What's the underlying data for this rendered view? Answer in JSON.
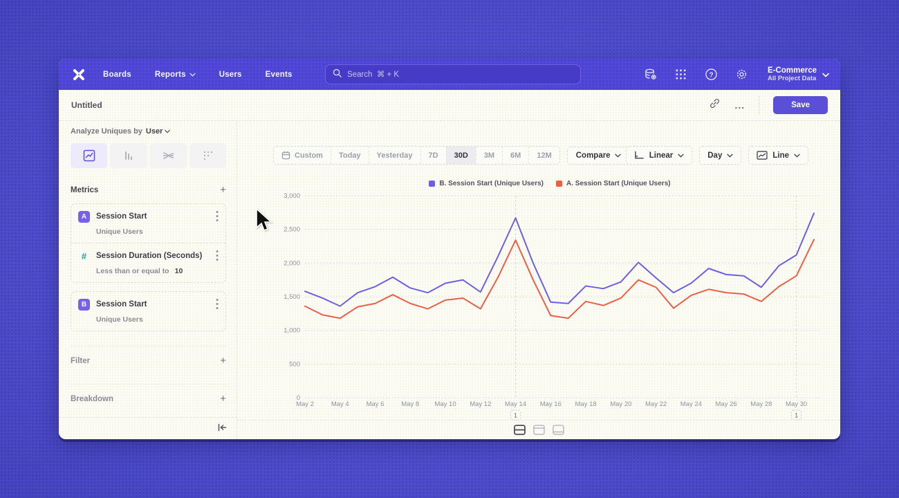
{
  "nav": {
    "items": [
      {
        "label": "Boards",
        "chevron": false
      },
      {
        "label": "Reports",
        "chevron": true
      },
      {
        "label": "Users",
        "chevron": false
      },
      {
        "label": "Events",
        "chevron": false
      }
    ],
    "search": {
      "placeholder": "Search  ⌘ + K"
    },
    "project": {
      "name": "E-Commerce",
      "subtitle": "All Project Data"
    }
  },
  "titlebar": {
    "title": "Untitled",
    "more_label": "...",
    "save_label": "Save"
  },
  "sidebar": {
    "analyze_label": "Analyze Uniques by",
    "analyze_value": "User",
    "metrics_title": "Metrics",
    "add_label": "+",
    "cards": [
      {
        "badge": "A",
        "badge_color": "#7a60e8",
        "title": "Session Start",
        "subtitle": "Unique Users",
        "value": "",
        "group": 0
      },
      {
        "badge": "#",
        "badge_color": "#16a79a",
        "badge_ghost": true,
        "title": "Session Duration (Seconds)",
        "subtitle": "Less than or equal to",
        "value": "10",
        "group": 0
      },
      {
        "badge": "B",
        "badge_color": "#7a60e8",
        "title": "Session Start",
        "subtitle": "Unique Users",
        "value": "",
        "group": 1
      }
    ],
    "sections": [
      {
        "label": "Filter"
      },
      {
        "label": "Breakdown"
      }
    ]
  },
  "toolbar": {
    "ranges": [
      "Custom",
      "Today",
      "Yesterday",
      "7D",
      "30D",
      "3M",
      "6M",
      "12M"
    ],
    "selected_range": "30D",
    "compare_label": "Compare",
    "scale_label": "Linear",
    "interval_label": "Day",
    "chart_type_label": "Line"
  },
  "chart_data": {
    "type": "line",
    "x_labels": [
      "May 2",
      "May 3",
      "May 4",
      "May 5",
      "May 6",
      "May 7",
      "May 8",
      "May 9",
      "May 10",
      "May 11",
      "May 12",
      "May 13",
      "May 14",
      "May 15",
      "May 16",
      "May 17",
      "May 18",
      "May 19",
      "May 20",
      "May 21",
      "May 22",
      "May 23",
      "May 24",
      "May 25",
      "May 26",
      "May 27",
      "May 28",
      "May 29",
      "May 30",
      "May 31"
    ],
    "xtick_every": 2,
    "ylim": [
      0,
      3000
    ],
    "ytick_step": 500,
    "grid": "dotted-horizontal",
    "legend_position": "top-center",
    "series": [
      {
        "name": "B. Session Start (Unique Users)",
        "color": "#6e5fe2",
        "values": [
          1580,
          1480,
          1360,
          1560,
          1650,
          1790,
          1630,
          1560,
          1700,
          1750,
          1570,
          2100,
          2670,
          2000,
          1420,
          1400,
          1660,
          1620,
          1720,
          2010,
          1780,
          1560,
          1700,
          1920,
          1830,
          1810,
          1640,
          1960,
          2120,
          2740
        ]
      },
      {
        "name": "A. Session Start (Unique Users)",
        "color": "#ec5f47",
        "values": [
          1360,
          1230,
          1180,
          1350,
          1400,
          1530,
          1400,
          1320,
          1450,
          1480,
          1320,
          1790,
          2340,
          1750,
          1220,
          1180,
          1430,
          1370,
          1480,
          1750,
          1640,
          1330,
          1520,
          1610,
          1560,
          1540,
          1430,
          1650,
          1810,
          2350
        ]
      }
    ],
    "annotations": [
      {
        "x_index": 12,
        "label": "1"
      },
      {
        "x_index": 28,
        "label": "1"
      }
    ]
  }
}
